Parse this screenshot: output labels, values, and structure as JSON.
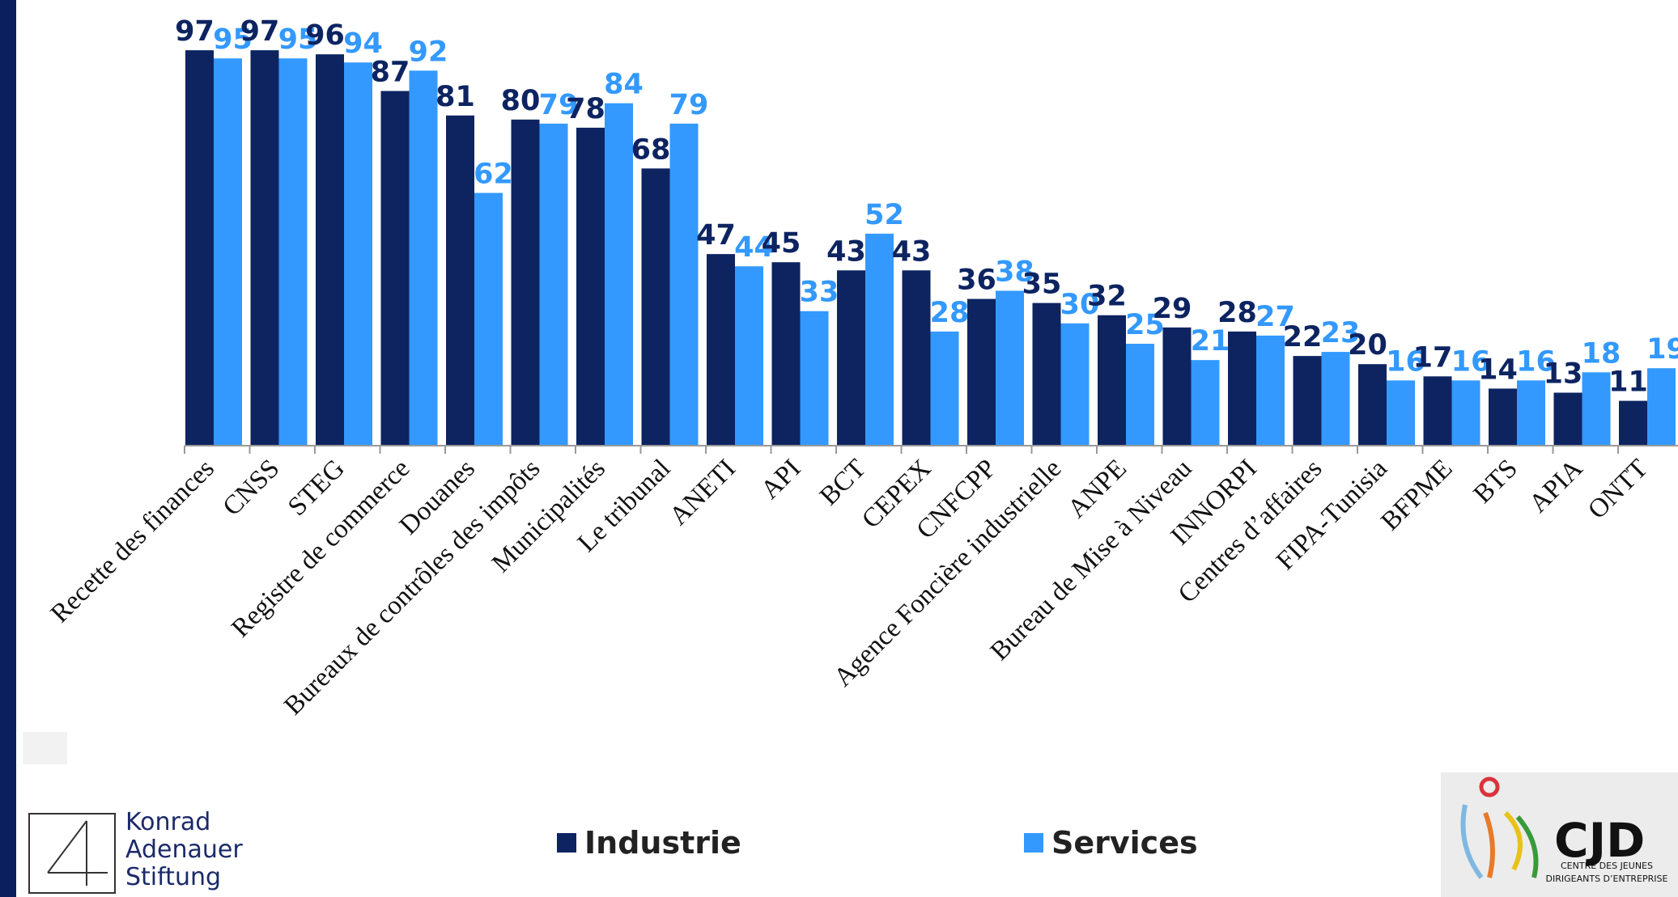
{
  "chart_data": {
    "type": "bar",
    "categories": [
      "Recette des finances",
      "CNSS",
      "STEG",
      "Registre de commerce",
      "Douanes",
      "Bureaux de contrôles des impôts",
      "Municipalités",
      "Le tribunal",
      "ANETI",
      "API",
      "BCT",
      "CEPEX",
      "CNFCPP",
      "Agence Foncière industrielle",
      "ANPE",
      "Bureau de Mise à Niveau",
      "INNORPI",
      "Centres d’affaires",
      "FIPA-Tunisia",
      "BFPME",
      "BTS",
      "APIA",
      "ONTT"
    ],
    "series": [
      {
        "name": "Industrie",
        "color": "#0d2461",
        "values": [
          97,
          97,
          96,
          87,
          81,
          80,
          78,
          68,
          47,
          45,
          43,
          43,
          36,
          35,
          32,
          29,
          28,
          22,
          20,
          17,
          14,
          13,
          11
        ]
      },
      {
        "name": "Services",
        "color": "#3399ff",
        "values": [
          95,
          95,
          94,
          92,
          62,
          79,
          84,
          79,
          44,
          33,
          52,
          28,
          38,
          30,
          25,
          21,
          27,
          23,
          16,
          16,
          16,
          18,
          19
        ]
      }
    ],
    "legend_position": "bottom",
    "grid": false
  },
  "logos": {
    "kas": {
      "name": "Konrad\nAdenauer\nStiftung"
    },
    "cjd": {
      "name": "CJD",
      "subtitle": "CENTRE DES JEUNES\nDIRIGEANTS D’ENTREPRISE"
    }
  }
}
